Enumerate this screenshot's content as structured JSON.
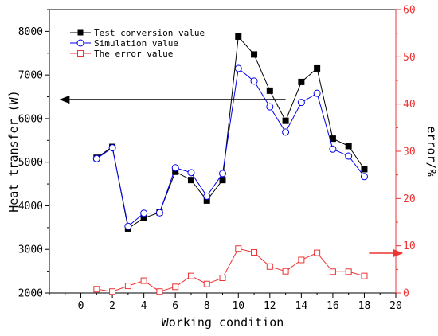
{
  "chart_data": {
    "type": "line",
    "xlabel": "Working condition",
    "ylabel_left": "Heat transfer (W)",
    "ylabel_right": "error/%",
    "xlim": [
      -2,
      20
    ],
    "ylim_left": [
      2000,
      8500
    ],
    "ylim_right": [
      0,
      60
    ],
    "x_ticks": [
      0,
      2,
      4,
      6,
      8,
      10,
      12,
      14,
      16,
      18,
      20
    ],
    "y_left_ticks": [
      2000,
      3000,
      4000,
      5000,
      6000,
      7000,
      8000
    ],
    "y_right_ticks": [
      0,
      10,
      20,
      30,
      40,
      50,
      60
    ],
    "grid": false,
    "legend_position": "top-left",
    "series": [
      {
        "name": "Test conversion value",
        "axis": "left",
        "color": "#000000",
        "marker": "filled-square",
        "x": [
          1,
          2,
          3,
          4,
          5,
          6,
          7,
          8,
          9,
          10,
          11,
          12,
          13,
          14,
          15,
          16,
          17,
          18
        ],
        "values": [
          5100,
          5350,
          3480,
          3720,
          3850,
          4780,
          4590,
          4120,
          4590,
          7880,
          7470,
          6640,
          5950,
          6840,
          7150,
          5540,
          5370,
          4840
        ]
      },
      {
        "name": "Simulation value",
        "axis": "left",
        "color": "#0000ee",
        "marker": "open-circle",
        "x": [
          1,
          2,
          3,
          4,
          5,
          6,
          7,
          8,
          9,
          10,
          11,
          12,
          13,
          14,
          15,
          16,
          17,
          18
        ],
        "values": [
          5080,
          5330,
          3530,
          3830,
          3840,
          4870,
          4760,
          4220,
          4740,
          7150,
          6860,
          6270,
          5690,
          6370,
          6580,
          5300,
          5140,
          4670
        ]
      },
      {
        "name": "The error value",
        "axis": "right",
        "color": "#ee3333",
        "marker": "open-square",
        "x": [
          1,
          2,
          3,
          4,
          5,
          6,
          7,
          8,
          9,
          10,
          11,
          12,
          13,
          14,
          15,
          16,
          17,
          18
        ],
        "values": [
          0.8,
          0.3,
          1.5,
          2.6,
          0.3,
          1.3,
          3.6,
          1.9,
          3.2,
          9.4,
          8.6,
          5.6,
          4.6,
          7.0,
          8.5,
          4.5,
          4.5,
          3.6
        ]
      }
    ],
    "annotations": [
      {
        "type": "arrow",
        "direction": "left",
        "color": "#000000",
        "meaning": "points to left axis"
      },
      {
        "type": "arrow",
        "direction": "right",
        "color": "#ee3333",
        "meaning": "points to right axis"
      }
    ]
  }
}
